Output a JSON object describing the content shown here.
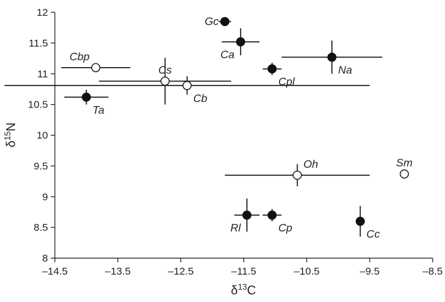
{
  "chart_data": {
    "type": "scatter",
    "title": "",
    "xlabel": {
      "prefix": "δ",
      "sup": "13",
      "suffix": "C"
    },
    "ylabel": {
      "prefix": "δ",
      "sup": "15",
      "suffix": "N"
    },
    "xlim": [
      -14.5,
      -8.5
    ],
    "ylim": [
      8,
      12
    ],
    "xticks": [
      -14.5,
      -13.5,
      -12.5,
      -11.5,
      -10.5,
      -9.5,
      -8.5
    ],
    "yticks": [
      8,
      8.5,
      9,
      9.5,
      10,
      10.5,
      11,
      11.5,
      12
    ],
    "xtick_labels": [
      "–14.5",
      "–13.5",
      "–12.5",
      "–11.5",
      "–10.5",
      "–9.5",
      "–8.5"
    ],
    "ytick_labels": [
      "8",
      "8.5",
      "9",
      "9.5",
      "10",
      "10.5",
      "11",
      "11.5",
      "12"
    ],
    "grid": false,
    "points": [
      {
        "label": "Gc",
        "x": -11.8,
        "y": 11.85,
        "filled": true,
        "xerr": 0.1,
        "yerr": 0.05,
        "label_dx": -1,
        "label_dy": 0
      },
      {
        "label": "Ca",
        "x": -11.55,
        "y": 11.52,
        "filled": true,
        "xerr": 0.3,
        "yerr": 0.22,
        "label_dx": -1,
        "label_dy": 1
      },
      {
        "label": "Cbp",
        "x": -13.85,
        "y": 11.1,
        "filled": false,
        "xerr": 0.55,
        "yerr": 0.0,
        "label_dx": -1,
        "label_dy": -1
      },
      {
        "label": "Cs",
        "x": -12.75,
        "y": 10.88,
        "filled": false,
        "xerr": 1.05,
        "yerr": 0.38,
        "label_dx": 0,
        "label_dy": -1
      },
      {
        "label": "Cb",
        "x": -12.4,
        "y": 10.81,
        "filled": false,
        "xerr": 2.9,
        "yerr": 0.15,
        "label_dx": 1,
        "label_dy": 1
      },
      {
        "label": "Cpl",
        "x": -11.05,
        "y": 11.08,
        "filled": true,
        "xerr": 0.15,
        "yerr": 0.1,
        "label_dx": 1,
        "label_dy": 1
      },
      {
        "label": "Na",
        "x": -10.1,
        "y": 11.27,
        "filled": true,
        "xerr": 0.8,
        "yerr": 0.27,
        "label_dx": 1,
        "label_dy": 1
      },
      {
        "label": "Ta",
        "x": -14.0,
        "y": 10.62,
        "filled": true,
        "xerr": 0.35,
        "yerr": 0.12,
        "label_dx": 1,
        "label_dy": 1
      },
      {
        "label": "Oh",
        "x": -10.65,
        "y": 9.35,
        "filled": false,
        "xerr": 1.15,
        "yerr": 0.18,
        "label_dx": 1,
        "label_dy": -1
      },
      {
        "label": "Sm",
        "x": -8.95,
        "y": 9.37,
        "filled": false,
        "xerr": 0.0,
        "yerr": 0.0,
        "label_dx": 0,
        "label_dy": -1
      },
      {
        "label": "Rl",
        "x": -11.45,
        "y": 8.7,
        "filled": true,
        "xerr": 0.2,
        "yerr": 0.27,
        "label_dx": -1,
        "label_dy": 1
      },
      {
        "label": "Cp",
        "x": -11.05,
        "y": 8.7,
        "filled": true,
        "xerr": 0.15,
        "yerr": 0.1,
        "label_dx": 1,
        "label_dy": 1
      },
      {
        "label": "Cc",
        "x": -9.65,
        "y": 8.6,
        "filled": true,
        "xerr": 0.05,
        "yerr": 0.25,
        "label_dx": 1,
        "label_dy": 1
      }
    ]
  }
}
